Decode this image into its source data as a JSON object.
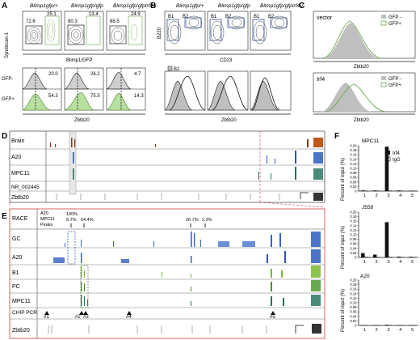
{
  "panels": {
    "A": {
      "label": "A",
      "titles": [
        "Blimp1gfp/+",
        "Blimp1gfp/gfp",
        "Blimp1gfp/gfpIrf4-/-"
      ],
      "ylabel": "Syndecan-1",
      "xlabel": "Blimp1/GFP",
      "flow": [
        {
          "left": "72.6",
          "right": "25.1"
        },
        {
          "left": "80.3",
          "right": "13.4"
        },
        {
          "left": "68.5",
          "right": "24.9"
        }
      ],
      "hist": [
        {
          "top": "20.0",
          "bottom": "54.3"
        },
        {
          "top": "26.2",
          "bottom": "75.5"
        },
        {
          "top": "4.7",
          "bottom": "14.3"
        }
      ],
      "gfp_neg": "GFP-",
      "gfp_pos": "GFP+",
      "hist_xlabel": "Zbtb20"
    },
    "B": {
      "label": "B",
      "titles": [
        "Blimp1gfp/+",
        "Blimp1gfp/gfp",
        "Blimp1gfp/gfpIrf4-/-"
      ],
      "ylabel": "B220",
      "xlabel": "CD23",
      "gate1": "B1",
      "gate2": "B2",
      "legend": [
        "B2",
        "B1"
      ],
      "hist_xlabel": "Zbtb20"
    },
    "C": {
      "label": "C",
      "top_title": "vector",
      "bottom_title": "Irf4",
      "legend": [
        "GFP -",
        "GFP+"
      ],
      "xlabel": "Zbtb20"
    },
    "D": {
      "label": "D",
      "tracks": [
        "Brain",
        "A20",
        "MPC11",
        "NR_002445",
        "Zbtb20"
      ]
    },
    "E": {
      "label": "E",
      "race": "RACE",
      "race_rows": [
        "A20",
        "MPC11",
        "Peaks"
      ],
      "race_pcts": [
        "100%",
        "6.7%",
        "64.4%",
        "26.7%",
        "2.2%"
      ],
      "tracks": [
        "GC",
        "A20",
        "B1",
        "PC",
        "MPC11"
      ],
      "chip": "CHIP PCR",
      "sites": [
        "#1",
        "#2",
        "#3",
        "#4",
        "#5"
      ],
      "gene": "Zbtb20"
    },
    "F": {
      "label": "F",
      "ylabel": "Percent of input (%)",
      "legend": [
        "Irf4",
        "IgG"
      ]
    }
  },
  "chart_data": [
    {
      "type": "bar",
      "title": "MPC11",
      "categories": [
        "1",
        "2",
        "3",
        "4",
        "5"
      ],
      "yticks": [
        "0",
        "0.02",
        "0.04",
        "0.06",
        "0.08",
        "0.10",
        "0.12",
        "0.14",
        "0.16",
        "0.18",
        "0.20"
      ],
      "ylim": [
        0,
        0.2
      ],
      "series": [
        {
          "name": "Irf4",
          "values": [
            0.002,
            0.002,
            0.195,
            0.002,
            0.001
          ]
        },
        {
          "name": "IgG",
          "values": [
            0.001,
            0.001,
            0.001,
            0.001,
            0.001
          ]
        }
      ],
      "ylabel": "Percent of input (%)"
    },
    {
      "type": "bar",
      "title": "J558",
      "categories": [
        "1",
        "2",
        "3",
        "4",
        "5"
      ],
      "yticks": [
        "0",
        "0.02",
        "0.04",
        "0.06",
        "0.08",
        "0.10",
        "0.12",
        "0.14",
        "0.16",
        "0.18",
        "0.20"
      ],
      "ylim": [
        0,
        0.2
      ],
      "series": [
        {
          "name": "Irf4",
          "values": [
            0.018,
            0.012,
            0.155,
            0.003,
            0.002
          ]
        },
        {
          "name": "IgG",
          "values": [
            0.002,
            0.001,
            0.002,
            0.001,
            0.001
          ]
        }
      ],
      "ylabel": "Percent of input (%)"
    },
    {
      "type": "bar",
      "title": "A20",
      "categories": [
        "1",
        "2",
        "3",
        "4",
        "5"
      ],
      "yticks": [
        "0",
        "0.02",
        "0.04",
        "0.06",
        "0.08",
        "0.10",
        "0.12",
        "0.14",
        "0.16",
        "0.18",
        "0.20"
      ],
      "ylim": [
        0,
        0.2
      ],
      "series": [
        {
          "name": "Irf4",
          "values": [
            0.001,
            0.001,
            0.002,
            0.001,
            0.001
          ]
        },
        {
          "name": "IgG",
          "values": [
            0.001,
            0.001,
            0.001,
            0.001,
            0.001
          ]
        }
      ],
      "ylabel": "Percent of input (%)"
    }
  ]
}
